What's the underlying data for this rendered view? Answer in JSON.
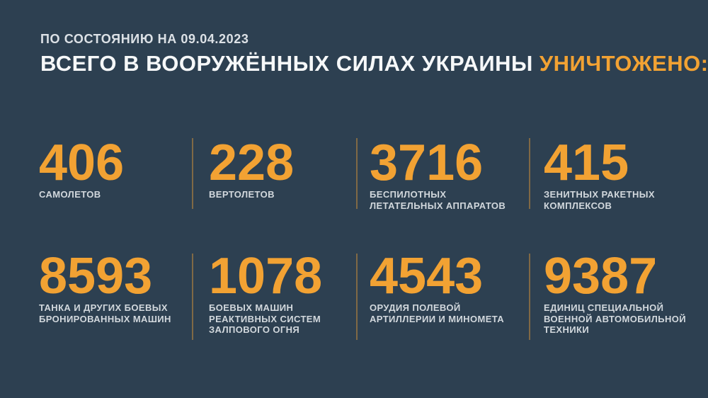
{
  "page": {
    "background_color": "#2d4051",
    "accent_color": "#f2a233",
    "divider_color": "rgba(242,162,52,0.42)"
  },
  "header": {
    "date_line": "ПО СОСТОЯНИЮ НА 09.04.2023",
    "title_main": "ВСЕГО В ВООРУЖЁННЫХ СИЛАХ УКРАИНЫ",
    "title_accent": "УНИЧТОЖЕНО:"
  },
  "stats": {
    "row1": [
      {
        "value": "406",
        "label": "САМОЛЕТОВ"
      },
      {
        "value": "228",
        "label": "ВЕРТОЛЕТОВ"
      },
      {
        "value": "3716",
        "label": "БЕСПИЛОТНЫХ\nЛЕТАТЕЛЬНЫХ АППАРАТОВ"
      },
      {
        "value": "415",
        "label": "ЗЕНИТНЫХ РАКЕТНЫХ\nКОМПЛЕКСОВ"
      }
    ],
    "row2": [
      {
        "value": "8593",
        "label": "ТАНКА И ДРУГИХ БОЕВЫХ\nБРОНИРОВАННЫХ МАШИН"
      },
      {
        "value": "1078",
        "label": "БОЕВЫХ МАШИН\nРЕАКТИВНЫХ СИСТЕМ\nЗАЛПОВОГО ОГНЯ"
      },
      {
        "value": "4543",
        "label": "ОРУДИЯ ПОЛЕВОЙ\nАРТИЛЛЕРИИ И МИНОМЕТА"
      },
      {
        "value": "9387",
        "label": "ЕДИНИЦ СПЕЦИАЛЬНОЙ\nВОЕННОЙ АВТОМОБИЛЬНОЙ\nТЕХНИКИ"
      }
    ]
  },
  "chart_data": {
    "type": "table",
    "title": "ВСЕГО В ВООРУЖЁННЫХ СИЛАХ УКРАИНЫ УНИЧТОЖЕНО:",
    "subtitle": "ПО СОСТОЯНИЮ НА 09.04.2023",
    "categories": [
      "самолетов",
      "вертолетов",
      "беспилотных летательных аппаратов",
      "зенитных ракетных комплексов",
      "танка и других боевых бронированных машин",
      "боевых машин реактивных систем залпового огня",
      "орудия полевой артиллерии и миномета",
      "единиц специальной военной автомобильной техники"
    ],
    "values": [
      406,
      228,
      3716,
      415,
      8593,
      1078,
      4543,
      9387
    ],
    "layout": "2 rows x 4 columns grid of big-number stat cards, vertical dividers between columns"
  }
}
